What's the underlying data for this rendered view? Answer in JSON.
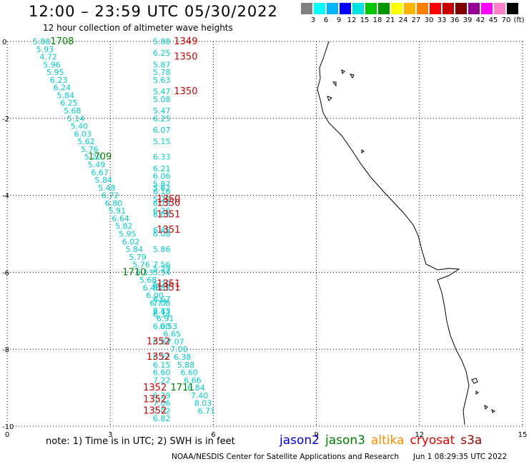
{
  "header": {
    "title": "12:00 – 23:59 UTC 05/30/2022",
    "subtitle": "12 hour collection of altimeter wave heights"
  },
  "colorbar": {
    "colors": [
      "#808080",
      "#00ffff",
      "#00b4ff",
      "#0000ff",
      "#00e1e1",
      "#00c800",
      "#009600",
      "#ffff00",
      "#ffb400",
      "#ff8000",
      "#ff0000",
      "#c80000",
      "#800000",
      "#960096",
      "#ff00ff",
      "#ff80c8",
      "#000000"
    ],
    "labels": [
      "3",
      "6",
      "9",
      "12",
      "15",
      "18",
      "21",
      "24",
      "27",
      "30",
      "33",
      "36",
      "39",
      "42",
      "45",
      "70",
      "(ft)"
    ]
  },
  "axes": {
    "x_ticks": [
      "0",
      "3",
      "6",
      "9",
      "12",
      "15"
    ],
    "y_ticks": [
      "0",
      "-2",
      "-4",
      "-6",
      "-8",
      "-10"
    ]
  },
  "colors": {
    "jason3": "#008000",
    "cryosat": "#cc0000",
    "swh": "#00cccc"
  },
  "chart_data": {
    "type": "scatter",
    "xlim": [
      0,
      15
    ],
    "ylim": [
      -10,
      0
    ],
    "swh_points": [
      {
        "x": 1.0,
        "y": 0.0,
        "v": "5.88"
      },
      {
        "x": 1.1,
        "y": -0.2,
        "v": "5.93"
      },
      {
        "x": 1.2,
        "y": -0.4,
        "v": "4.72"
      },
      {
        "x": 1.3,
        "y": -0.6,
        "v": "5.96"
      },
      {
        "x": 1.4,
        "y": -0.8,
        "v": "5.95"
      },
      {
        "x": 1.5,
        "y": -1.0,
        "v": "6.23"
      },
      {
        "x": 1.6,
        "y": -1.2,
        "v": "6.24"
      },
      {
        "x": 1.7,
        "y": -1.4,
        "v": "5.84"
      },
      {
        "x": 1.8,
        "y": -1.6,
        "v": "6.25"
      },
      {
        "x": 1.9,
        "y": -1.8,
        "v": "5.68"
      },
      {
        "x": 2.0,
        "y": -2.0,
        "v": "5.14"
      },
      {
        "x": 2.1,
        "y": -2.2,
        "v": "5.40"
      },
      {
        "x": 2.2,
        "y": -2.4,
        "v": "6.03"
      },
      {
        "x": 2.3,
        "y": -2.6,
        "v": "5.62"
      },
      {
        "x": 2.4,
        "y": -2.8,
        "v": "5.76"
      },
      {
        "x": 2.5,
        "y": -3.0,
        "v": "5.22"
      },
      {
        "x": 2.6,
        "y": -3.2,
        "v": "5.49"
      },
      {
        "x": 2.7,
        "y": -3.4,
        "v": "6.67"
      },
      {
        "x": 2.8,
        "y": -3.6,
        "v": "5.84"
      },
      {
        "x": 2.9,
        "y": -3.8,
        "v": "5.48"
      },
      {
        "x": 3.0,
        "y": -4.0,
        "v": "6.72"
      },
      {
        "x": 3.1,
        "y": -4.2,
        "v": "6.80"
      },
      {
        "x": 3.2,
        "y": -4.4,
        "v": "5.91"
      },
      {
        "x": 3.3,
        "y": -4.6,
        "v": "6.64"
      },
      {
        "x": 3.4,
        "y": -4.8,
        "v": "5.82"
      },
      {
        "x": 3.5,
        "y": -5.0,
        "v": "5.95"
      },
      {
        "x": 3.6,
        "y": -5.2,
        "v": "6.02"
      },
      {
        "x": 3.7,
        "y": -5.4,
        "v": "5.84"
      },
      {
        "x": 3.8,
        "y": -5.6,
        "v": "5.79"
      },
      {
        "x": 3.9,
        "y": -5.8,
        "v": "5.76"
      },
      {
        "x": 4.0,
        "y": -6.0,
        "v": "6.13"
      },
      {
        "x": 4.1,
        "y": -6.2,
        "v": "5.68"
      },
      {
        "x": 4.2,
        "y": -6.4,
        "v": "6.46"
      },
      {
        "x": 4.3,
        "y": -6.6,
        "v": "6.00"
      },
      {
        "x": 4.4,
        "y": -6.8,
        "v": "6.77"
      },
      {
        "x": 4.5,
        "y": -7.0,
        "v": "6.45"
      },
      {
        "x": 4.6,
        "y": -7.2,
        "v": "6.91"
      },
      {
        "x": 4.7,
        "y": -7.4,
        "v": "6.53"
      },
      {
        "x": 4.8,
        "y": -7.6,
        "v": "6.65"
      },
      {
        "x": 4.9,
        "y": -7.8,
        "v": "7.07"
      },
      {
        "x": 5.0,
        "y": -8.0,
        "v": "7.00"
      },
      {
        "x": 5.1,
        "y": -8.2,
        "v": "6.38"
      },
      {
        "x": 5.2,
        "y": -8.4,
        "v": "5.88"
      },
      {
        "x": 5.3,
        "y": -8.6,
        "v": "6.60"
      },
      {
        "x": 5.4,
        "y": -8.8,
        "v": "6.66"
      },
      {
        "x": 5.5,
        "y": -9.0,
        "v": "6.84"
      },
      {
        "x": 5.6,
        "y": -9.2,
        "v": "7.40"
      },
      {
        "x": 5.7,
        "y": -9.4,
        "v": "8.03"
      },
      {
        "x": 5.8,
        "y": -9.6,
        "v": "6.71"
      },
      {
        "x": 4.5,
        "y": 0.0,
        "v": "5.88"
      },
      {
        "x": 4.5,
        "y": -0.3,
        "v": "6.25"
      },
      {
        "x": 4.5,
        "y": -0.6,
        "v": "5.87"
      },
      {
        "x": 4.5,
        "y": -0.8,
        "v": "5.78"
      },
      {
        "x": 4.5,
        "y": -1.0,
        "v": "5.63"
      },
      {
        "x": 4.5,
        "y": -1.3,
        "v": "5.47"
      },
      {
        "x": 4.5,
        "y": -1.5,
        "v": "5.08"
      },
      {
        "x": 4.5,
        "y": -1.8,
        "v": "5.47"
      },
      {
        "x": 4.5,
        "y": -2.0,
        "v": "6.25"
      },
      {
        "x": 4.5,
        "y": -2.3,
        "v": "6.07"
      },
      {
        "x": 4.5,
        "y": -2.6,
        "v": "5.15"
      },
      {
        "x": 4.5,
        "y": -3.0,
        "v": "6.33"
      },
      {
        "x": 4.5,
        "y": -3.3,
        "v": "6.21"
      },
      {
        "x": 4.5,
        "y": -3.5,
        "v": "6.06"
      },
      {
        "x": 4.5,
        "y": -3.7,
        "v": "5.87"
      },
      {
        "x": 4.5,
        "y": -3.8,
        "v": "5.62"
      },
      {
        "x": 4.5,
        "y": -3.9,
        "v": "6.16"
      },
      {
        "x": 4.5,
        "y": -4.1,
        "v": "5.72"
      },
      {
        "x": 4.5,
        "y": -4.2,
        "v": "6.73"
      },
      {
        "x": 4.5,
        "y": -4.4,
        "v": "6.26"
      },
      {
        "x": 4.5,
        "y": -4.5,
        "v": "6.05"
      },
      {
        "x": 4.5,
        "y": -4.9,
        "v": "6.45"
      },
      {
        "x": 4.5,
        "y": -5.0,
        "v": "6.08"
      },
      {
        "x": 4.5,
        "y": -5.4,
        "v": "5.86"
      },
      {
        "x": 4.5,
        "y": -5.8,
        "v": "7.56"
      },
      {
        "x": 4.5,
        "y": -5.9,
        "v": "5.29"
      },
      {
        "x": 4.5,
        "y": -6.0,
        "v": "5.34"
      },
      {
        "x": 4.5,
        "y": -6.3,
        "v": "6.79"
      },
      {
        "x": 4.5,
        "y": -6.4,
        "v": "6.85"
      },
      {
        "x": 4.5,
        "y": -6.7,
        "v": "6.67"
      },
      {
        "x": 4.5,
        "y": -6.8,
        "v": "7.08"
      },
      {
        "x": 4.5,
        "y": -7.0,
        "v": "7.13"
      },
      {
        "x": 4.5,
        "y": -7.1,
        "v": "6.34"
      },
      {
        "x": 4.5,
        "y": -7.4,
        "v": "6.00"
      },
      {
        "x": 4.5,
        "y": -7.8,
        "v": "6.87"
      },
      {
        "x": 4.5,
        "y": -8.2,
        "v": "6.22"
      },
      {
        "x": 4.5,
        "y": -8.4,
        "v": "6.15"
      },
      {
        "x": 4.5,
        "y": -8.6,
        "v": "6.60"
      },
      {
        "x": 4.5,
        "y": -8.8,
        "v": "7.22"
      },
      {
        "x": 4.5,
        "y": -9.2,
        "v": "6.29"
      },
      {
        "x": 4.5,
        "y": -9.4,
        "v": "7.06"
      },
      {
        "x": 4.5,
        "y": -9.6,
        "v": "7.02"
      },
      {
        "x": 4.5,
        "y": -9.8,
        "v": "6.82"
      }
    ],
    "time_labels": [
      {
        "x": 1.6,
        "y": 0.0,
        "t": "1708",
        "sat": "jason3"
      },
      {
        "x": 2.7,
        "y": -3.0,
        "t": "1709",
        "sat": "jason3"
      },
      {
        "x": 3.7,
        "y": -6.0,
        "t": "1710",
        "sat": "jason3"
      },
      {
        "x": 5.1,
        "y": -9.0,
        "t": "1711",
        "sat": "jason3"
      },
      {
        "x": 5.2,
        "y": 0.0,
        "t": "1349",
        "sat": "cryosat"
      },
      {
        "x": 5.2,
        "y": -0.4,
        "t": "1350",
        "sat": "cryosat"
      },
      {
        "x": 5.2,
        "y": -1.3,
        "t": "1350",
        "sat": "cryosat"
      },
      {
        "x": 4.7,
        "y": -4.1,
        "t": "1350",
        "sat": "cryosat"
      },
      {
        "x": 4.7,
        "y": -4.2,
        "t": "1350",
        "sat": "cryosat"
      },
      {
        "x": 4.7,
        "y": -4.5,
        "t": "1351",
        "sat": "cryosat"
      },
      {
        "x": 4.7,
        "y": -4.9,
        "t": "1351",
        "sat": "cryosat"
      },
      {
        "x": 4.7,
        "y": -6.3,
        "t": "1351",
        "sat": "cryosat"
      },
      {
        "x": 4.7,
        "y": -6.4,
        "t": "1351",
        "sat": "cryosat"
      },
      {
        "x": 4.4,
        "y": -7.8,
        "t": "1352",
        "sat": "cryosat"
      },
      {
        "x": 4.4,
        "y": -8.2,
        "t": "1352",
        "sat": "cryosat"
      },
      {
        "x": 4.3,
        "y": -9.0,
        "t": "1352",
        "sat": "cryosat"
      },
      {
        "x": 4.3,
        "y": -9.3,
        "t": "1352",
        "sat": "cryosat"
      },
      {
        "x": 4.3,
        "y": -9.6,
        "t": "1352",
        "sat": "cryosat"
      }
    ]
  },
  "note": "note:  1) Time is in UTC;  2) SWH is in feet",
  "legend": [
    {
      "name": "jason2",
      "color": "#0000dd"
    },
    {
      "name": "jason3",
      "color": "#008000"
    },
    {
      "name": "altika",
      "color": "#ff8c00"
    },
    {
      "name": "cryosat",
      "color": "#dd0000"
    },
    {
      "name": "s3a",
      "color": "#990000"
    }
  ],
  "footer": {
    "credit": "NOAA/NESDIS Center for Satellite Applications and Research",
    "timestamp": "Jun  1 08:29:35 UTC 2022"
  }
}
